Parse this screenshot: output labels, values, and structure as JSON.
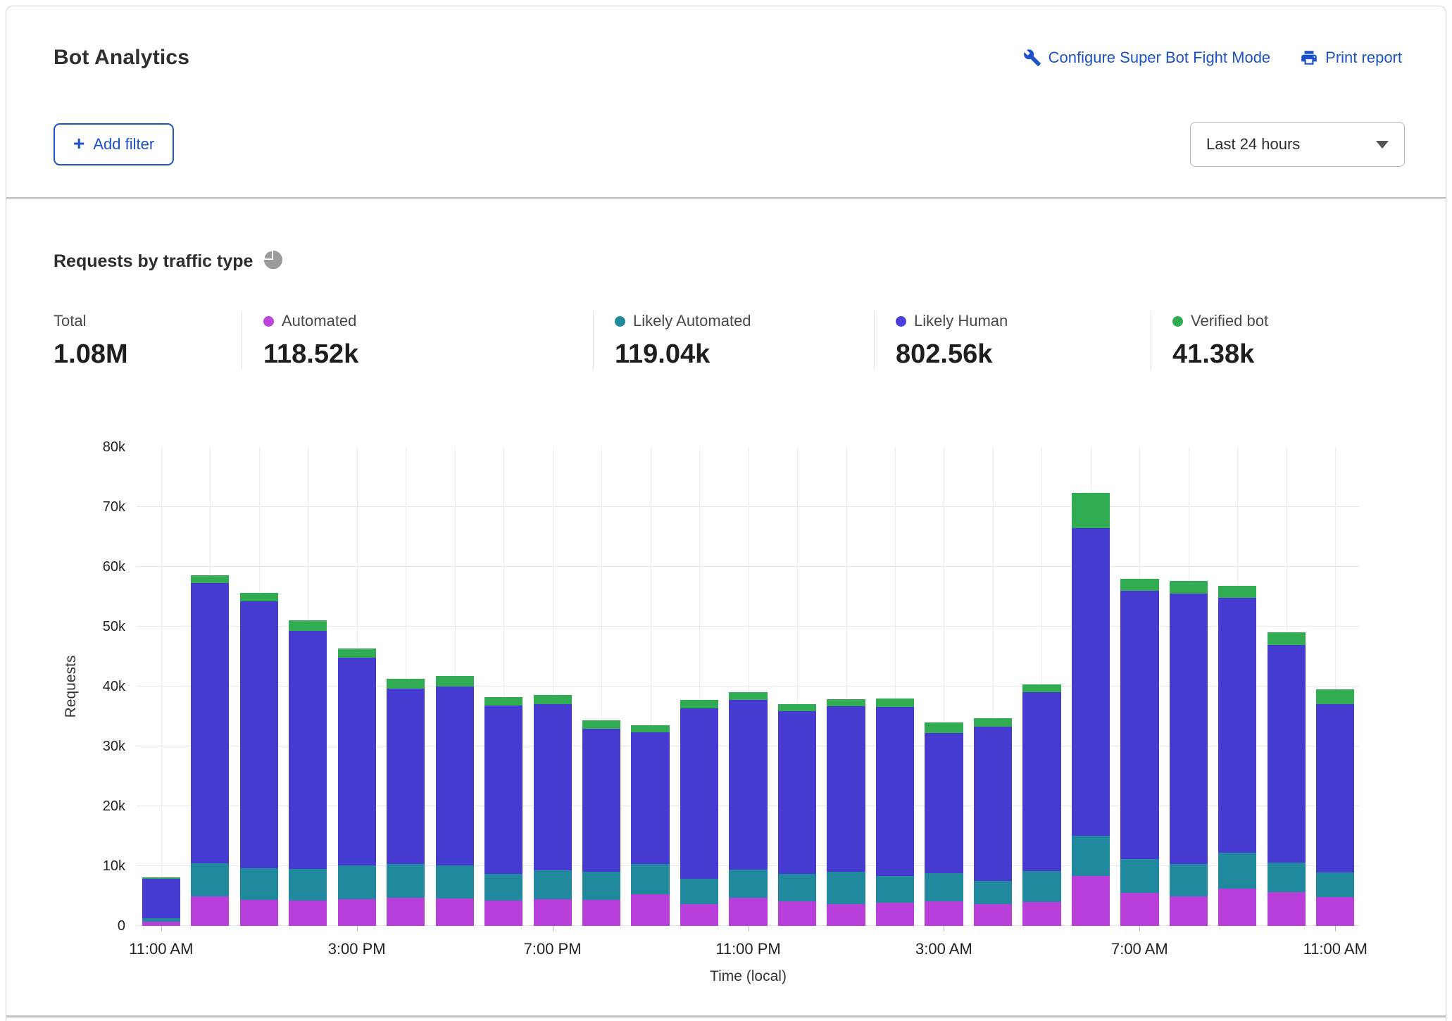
{
  "header": {
    "title": "Bot Analytics",
    "configure_link": "Configure Super Bot Fight Mode",
    "print_link": "Print report",
    "add_filter_label": "Add filter",
    "time_range": "Last 24 hours"
  },
  "section": {
    "title": "Requests by traffic type"
  },
  "stats": [
    {
      "label": "Total",
      "value": "1.08M",
      "color": null
    },
    {
      "label": "Automated",
      "value": "118.52k",
      "color": "#bb44dd"
    },
    {
      "label": "Likely Automated",
      "value": "119.04k",
      "color": "#21899d"
    },
    {
      "label": "Likely Human",
      "value": "802.56k",
      "color": "#4a3fdb"
    },
    {
      "label": "Verified bot",
      "value": "41.38k",
      "color": "#2fab52"
    }
  ],
  "chart_data": {
    "type": "bar",
    "stacked": true,
    "title": "Requests by traffic type",
    "xlabel": "Time (local)",
    "ylabel": "Requests",
    "ylim": [
      0,
      80000
    ],
    "grid": true,
    "ytick_labels": [
      "0",
      "10k",
      "20k",
      "30k",
      "40k",
      "50k",
      "60k",
      "70k",
      "80k"
    ],
    "xtick_labels": [
      "11:00 AM",
      "3:00 PM",
      "7:00 PM",
      "11:00 PM",
      "3:00 AM",
      "7:00 AM",
      "11:00 AM"
    ],
    "xtick_positions": [
      0,
      4,
      8,
      12,
      16,
      20,
      24
    ],
    "categories": [
      "11:00 AM",
      "12:00 PM",
      "1:00 PM",
      "2:00 PM",
      "3:00 PM",
      "4:00 PM",
      "5:00 PM",
      "6:00 PM",
      "7:00 PM",
      "8:00 PM",
      "9:00 PM",
      "10:00 PM",
      "11:00 PM",
      "12:00 AM",
      "1:00 AM",
      "2:00 AM",
      "3:00 AM",
      "4:00 AM",
      "5:00 AM",
      "6:00 AM",
      "7:00 AM",
      "8:00 AM",
      "9:00 AM",
      "10:00 AM",
      "11:00 AM"
    ],
    "series": [
      {
        "name": "Automated",
        "color": "#b83fd9",
        "values": [
          700,
          4900,
          4300,
          4200,
          4500,
          4700,
          4600,
          4200,
          4500,
          4300,
          5300,
          3600,
          4700,
          4100,
          3700,
          3900,
          4100,
          3700,
          4000,
          8300,
          5500,
          5000,
          6200,
          5600,
          4800
        ]
      },
      {
        "name": "Likely Automated",
        "color": "#21899d",
        "values": [
          600,
          5550,
          5400,
          5300,
          5600,
          5600,
          5500,
          4500,
          4750,
          4700,
          5000,
          4300,
          4700,
          4600,
          5350,
          4400,
          4700,
          3800,
          5200,
          6800,
          5700,
          5300,
          6000,
          5000,
          4100
        ]
      },
      {
        "name": "Likely Human",
        "color": "#453bd1",
        "values": [
          6600,
          46850,
          44500,
          39800,
          34700,
          29400,
          29900,
          28100,
          27850,
          23900,
          22100,
          28500,
          28300,
          27200,
          27650,
          28300,
          23400,
          25800,
          29900,
          51400,
          44800,
          45200,
          42600,
          36400,
          28100
        ]
      },
      {
        "name": "Verified bot",
        "color": "#32ac53",
        "values": [
          200,
          1300,
          1400,
          1700,
          1500,
          1600,
          1800,
          1400,
          1500,
          1400,
          1100,
          1300,
          1400,
          1100,
          1200,
          1400,
          1800,
          1400,
          1300,
          5900,
          2000,
          2100,
          2000,
          2100,
          2500
        ]
      }
    ]
  }
}
